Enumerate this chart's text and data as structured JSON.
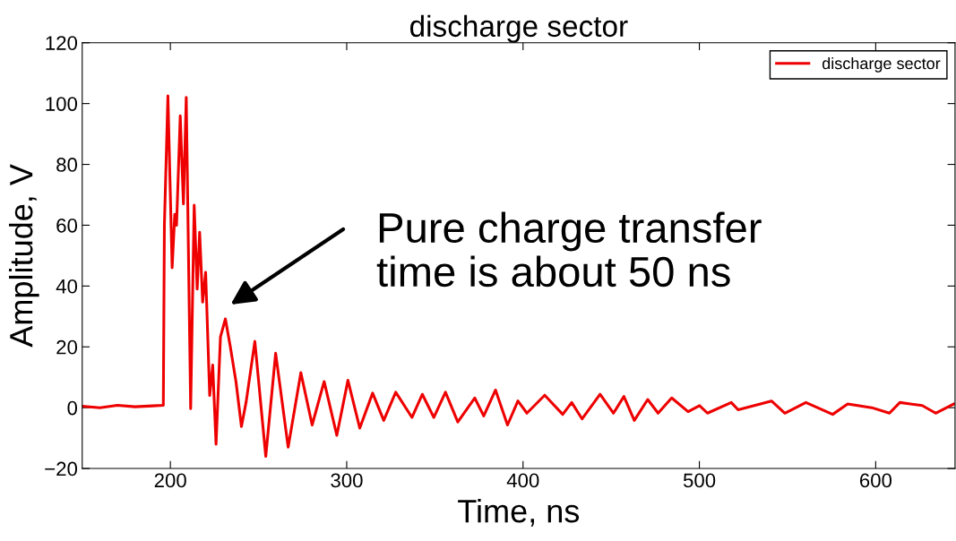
{
  "chart_data": {
    "type": "line",
    "title": "discharge sector",
    "xlabel": "Time, ns",
    "ylabel": "Amplitude, V",
    "xlim": [
      150,
      645
    ],
    "xticks": [
      200,
      300,
      400,
      500,
      600
    ],
    "ylim": [
      -20,
      120
    ],
    "yticks": [
      {
        "value": -20,
        "label": "−20"
      },
      0,
      20,
      40,
      60,
      80,
      100,
      120
    ],
    "grid": false,
    "legend": "top right",
    "marker": "none",
    "line_style": "solid",
    "annotations": [
      "Pure charge transfer\ntime is about 50 ns"
    ],
    "series": [
      {
        "name": "discharge sector",
        "color": "#ee0000",
        "x": [
          150,
          160,
          170,
          180,
          190,
          196,
          196.6,
          198.6,
          201,
          202.5,
          203.5,
          205.6,
          207.4,
          209,
          211.5,
          213.5,
          215.2,
          216.6,
          218.3,
          220,
          222.3,
          224,
          225.9,
          228.4,
          231.2,
          234,
          237.2,
          240.3,
          243,
          247.9,
          254.1,
          259.7,
          266.8,
          274,
          280.4,
          287.2,
          294.4,
          300.7,
          307.4,
          314.7,
          321,
          327.8,
          337,
          342.9,
          349.4,
          356,
          363,
          372.6,
          377.7,
          384.4,
          391.2,
          397.1,
          402.2,
          412.3,
          422.5,
          427.6,
          433.5,
          443.7,
          451.3,
          457.2,
          463.1,
          470.7,
          476.6,
          484.3,
          493.6,
          500.1,
          504.6,
          518.1,
          522,
          540.9,
          548.5,
          560.4,
          575.6,
          584.1,
          597.8,
          607.8,
          613.7,
          626.4,
          634,
          644.2
        ],
        "values": [
          0.5,
          0,
          0.8,
          0.3,
          0.6,
          0.8,
          60,
          102.5,
          46,
          63.6,
          60,
          96,
          67,
          102,
          -0.3,
          66.6,
          39,
          57.7,
          34.7,
          44.5,
          4,
          14,
          -12,
          23.3,
          29.2,
          20,
          8.6,
          -6.2,
          2,
          21.8,
          -16,
          17.9,
          -13,
          11.5,
          -5.7,
          8.6,
          -9.1,
          9,
          -6.7,
          4.8,
          -4.2,
          5.1,
          -3.2,
          4.4,
          -3.2,
          5.1,
          -4.7,
          3.2,
          -2.7,
          5.8,
          -5.7,
          2.2,
          -1.8,
          4.1,
          -2.2,
          1.7,
          -3.7,
          4.4,
          -1.8,
          3.7,
          -4.2,
          2.7,
          -1.8,
          3.2,
          -1.3,
          0.7,
          -1.8,
          1.7,
          -0.7,
          2.2,
          -1.8,
          1.7,
          -2.2,
          1.2,
          0,
          -1.8,
          1.7,
          0.7,
          -1.8,
          1.2
        ]
      }
    ]
  }
}
